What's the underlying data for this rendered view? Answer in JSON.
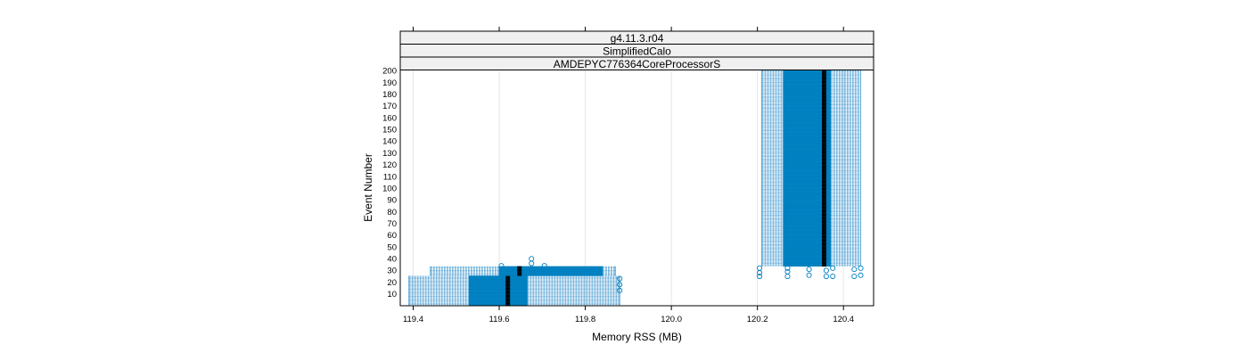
{
  "chart_data": {
    "type": "box",
    "strips": [
      "g4.11.3.r04",
      "SimplifiedCalo",
      "AMDEPYC776364CoreProcessorS"
    ],
    "xlabel": "Memory RSS (MB)",
    "ylabel": "Event Number",
    "xlim": [
      119.37,
      120.47
    ],
    "ylim": [
      0,
      201
    ],
    "x_ticks": [
      119.4,
      119.6,
      119.8,
      120.0,
      120.2,
      120.4
    ],
    "x_tick_labels": [
      "119.4",
      "119.6",
      "119.8",
      "120.0",
      "120.2",
      "120.4"
    ],
    "y_ticks": [
      10,
      20,
      30,
      40,
      50,
      60,
      70,
      80,
      90,
      100,
      110,
      120,
      130,
      140,
      150,
      160,
      170,
      180,
      190,
      200
    ],
    "y_tick_labels": [
      "10",
      "20",
      "30",
      "40",
      "50",
      "60",
      "70",
      "80",
      "90",
      "100",
      "110",
      "120",
      "130",
      "140",
      "150",
      "160",
      "170",
      "180",
      "190",
      "200"
    ],
    "grid": true,
    "colors": {
      "box": "#0080c0",
      "whisker": "#5fa8d8",
      "median": "#000000",
      "strip_bg": "#f0f0f0"
    },
    "groups": [
      {
        "y_range": [
          1,
          25
        ],
        "whisker": [
          119.39,
          119.88
        ],
        "box": [
          119.53,
          119.665
        ],
        "median": 119.62
      },
      {
        "y_range": [
          26,
          33
        ],
        "whisker": [
          119.44,
          119.87
        ],
        "box": [
          119.6,
          119.84
        ],
        "median": 119.647
      },
      {
        "y_range": [
          34,
          200
        ],
        "whisker": [
          120.21,
          120.44
        ],
        "box": [
          120.26,
          120.37
        ],
        "median": 120.355
      }
    ],
    "outliers": [
      {
        "x": 119.88,
        "y": 13
      },
      {
        "x": 119.88,
        "y": 18
      },
      {
        "x": 119.88,
        "y": 23
      },
      {
        "x": 119.675,
        "y": 36
      },
      {
        "x": 119.675,
        "y": 40
      },
      {
        "x": 119.605,
        "y": 34
      },
      {
        "x": 119.705,
        "y": 34
      },
      {
        "x": 120.205,
        "y": 25
      },
      {
        "x": 120.205,
        "y": 28
      },
      {
        "x": 120.205,
        "y": 32
      },
      {
        "x": 120.27,
        "y": 25
      },
      {
        "x": 120.27,
        "y": 29
      },
      {
        "x": 120.27,
        "y": 32
      },
      {
        "x": 120.32,
        "y": 26
      },
      {
        "x": 120.32,
        "y": 31
      },
      {
        "x": 120.36,
        "y": 25
      },
      {
        "x": 120.36,
        "y": 30
      },
      {
        "x": 120.375,
        "y": 25
      },
      {
        "x": 120.375,
        "y": 32
      },
      {
        "x": 120.425,
        "y": 25
      },
      {
        "x": 120.425,
        "y": 31
      },
      {
        "x": 120.44,
        "y": 26
      },
      {
        "x": 120.44,
        "y": 32
      }
    ]
  }
}
